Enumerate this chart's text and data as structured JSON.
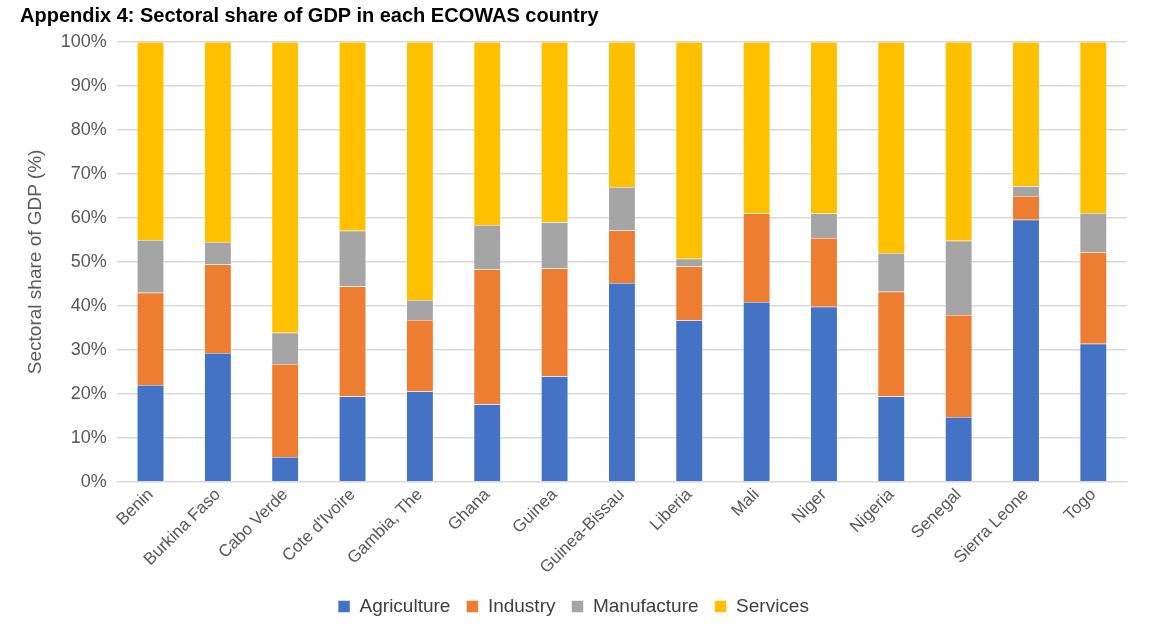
{
  "chart_data": {
    "type": "bar",
    "stacked": true,
    "title": "Appendix 4: Sectoral share of GDP in each ECOWAS country",
    "ylabel": "Sectoral share of GDP (%)",
    "categories": [
      "Benin",
      "Burkina Faso",
      "Cabo Verde",
      "Cote d'Ivoire",
      "Gambia, The",
      "Ghana",
      "Guinea",
      "Guinea-Bissau",
      "Liberia",
      "Mali",
      "Niger",
      "Nigeria",
      "Senegal",
      "Sierra Leone",
      "Togo"
    ],
    "series": [
      {
        "name": "Agriculture",
        "color": "#4472c4",
        "values": [
          22,
          29.3,
          5.6,
          19.4,
          20.6,
          17.6,
          24,
          45.2,
          36.7,
          40.9,
          39.8,
          19.4,
          14.7,
          59.6,
          31.4
        ]
      },
      {
        "name": "Industry",
        "color": "#ed7d31",
        "values": [
          21,
          20.1,
          21.2,
          25,
          16.2,
          30.7,
          24.5,
          12,
          12.3,
          20.1,
          15.6,
          23.8,
          23.2,
          5.4,
          20.8
        ]
      },
      {
        "name": "Manufacture",
        "color": "#a5a5a5",
        "values": [
          12,
          5.1,
          7.1,
          12.7,
          4.5,
          10.1,
          10.5,
          9.8,
          1.7,
          0,
          5.6,
          8.8,
          16.9,
          2.2,
          8.9
        ]
      },
      {
        "name": "Services",
        "color": "#ffc000",
        "values": [
          45,
          45.5,
          66.1,
          42.9,
          58.7,
          41.6,
          41,
          33,
          49.3,
          39,
          39,
          48,
          45.2,
          32.8,
          38.9
        ]
      }
    ],
    "ylim": [
      0,
      100
    ],
    "yticks": [
      {
        "value": 0,
        "label": "0%"
      },
      {
        "value": 10,
        "label": "10%"
      },
      {
        "value": 20,
        "label": "20%"
      },
      {
        "value": 30,
        "label": "30%"
      },
      {
        "value": 40,
        "label": "40%"
      },
      {
        "value": 50,
        "label": "50%"
      },
      {
        "value": 60,
        "label": "60%"
      },
      {
        "value": 70,
        "label": "70%"
      },
      {
        "value": 80,
        "label": "80%"
      },
      {
        "value": 90,
        "label": "90%"
      },
      {
        "value": 100,
        "label": "100%"
      }
    ],
    "grid": "y",
    "legend": "bottom"
  }
}
